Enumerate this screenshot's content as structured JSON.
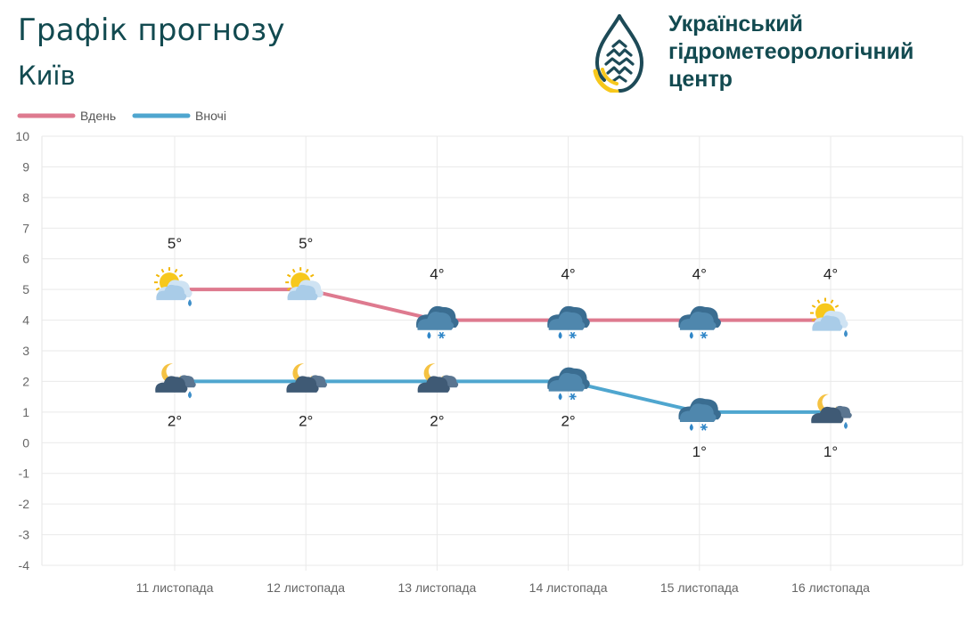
{
  "header": {
    "title": "Графік прогнозу",
    "city": "Київ"
  },
  "organization": {
    "name_lines": [
      "Український",
      "гідрометеорологічний",
      "центр"
    ],
    "logo_icon": "drop-logo-icon"
  },
  "colors": {
    "day": "#de7a8f",
    "night": "#4fa6cf",
    "title": "#124a50",
    "grid": "#e9e9e9",
    "axis_text": "#666666",
    "logo_yellow": "#f7c81c",
    "logo_dark": "#1d4a57"
  },
  "chart_data": {
    "type": "line",
    "legend_position": "top-left",
    "grid": true,
    "ylim": [
      -4,
      10
    ],
    "yticks": [
      10,
      9,
      8,
      7,
      6,
      5,
      4,
      3,
      2,
      1,
      0,
      -1,
      -2,
      -3,
      -4
    ],
    "categories": [
      "11 листопада",
      "12 листопада",
      "13 листопада",
      "14 листопада",
      "15 листопада",
      "16 листопада"
    ],
    "series": [
      {
        "name": "Вдень",
        "color": "#de7a8f",
        "values": [
          5,
          5,
          4,
          4,
          4,
          4
        ],
        "labels": [
          "5°",
          "5°",
          "4°",
          "4°",
          "4°",
          "4°"
        ],
        "icons": [
          "sun-cloud-rain-icon",
          "sun-cloud-icon",
          "cloud-rain-snow-icon",
          "cloud-rain-snow-icon",
          "cloud-rain-snow-icon",
          "sun-cloud-rain-icon"
        ]
      },
      {
        "name": "Вночі",
        "color": "#4fa6cf",
        "values": [
          2,
          2,
          2,
          2,
          1,
          1
        ],
        "labels": [
          "2°",
          "2°",
          "2°",
          "2°",
          "1°",
          "1°"
        ],
        "icons": [
          "moon-cloud-rain-icon",
          "moon-cloud-icon",
          "moon-cloud-icon",
          "cloud-rain-snow-icon",
          "cloud-rain-snow-icon",
          "moon-cloud-rain-icon"
        ]
      }
    ]
  }
}
